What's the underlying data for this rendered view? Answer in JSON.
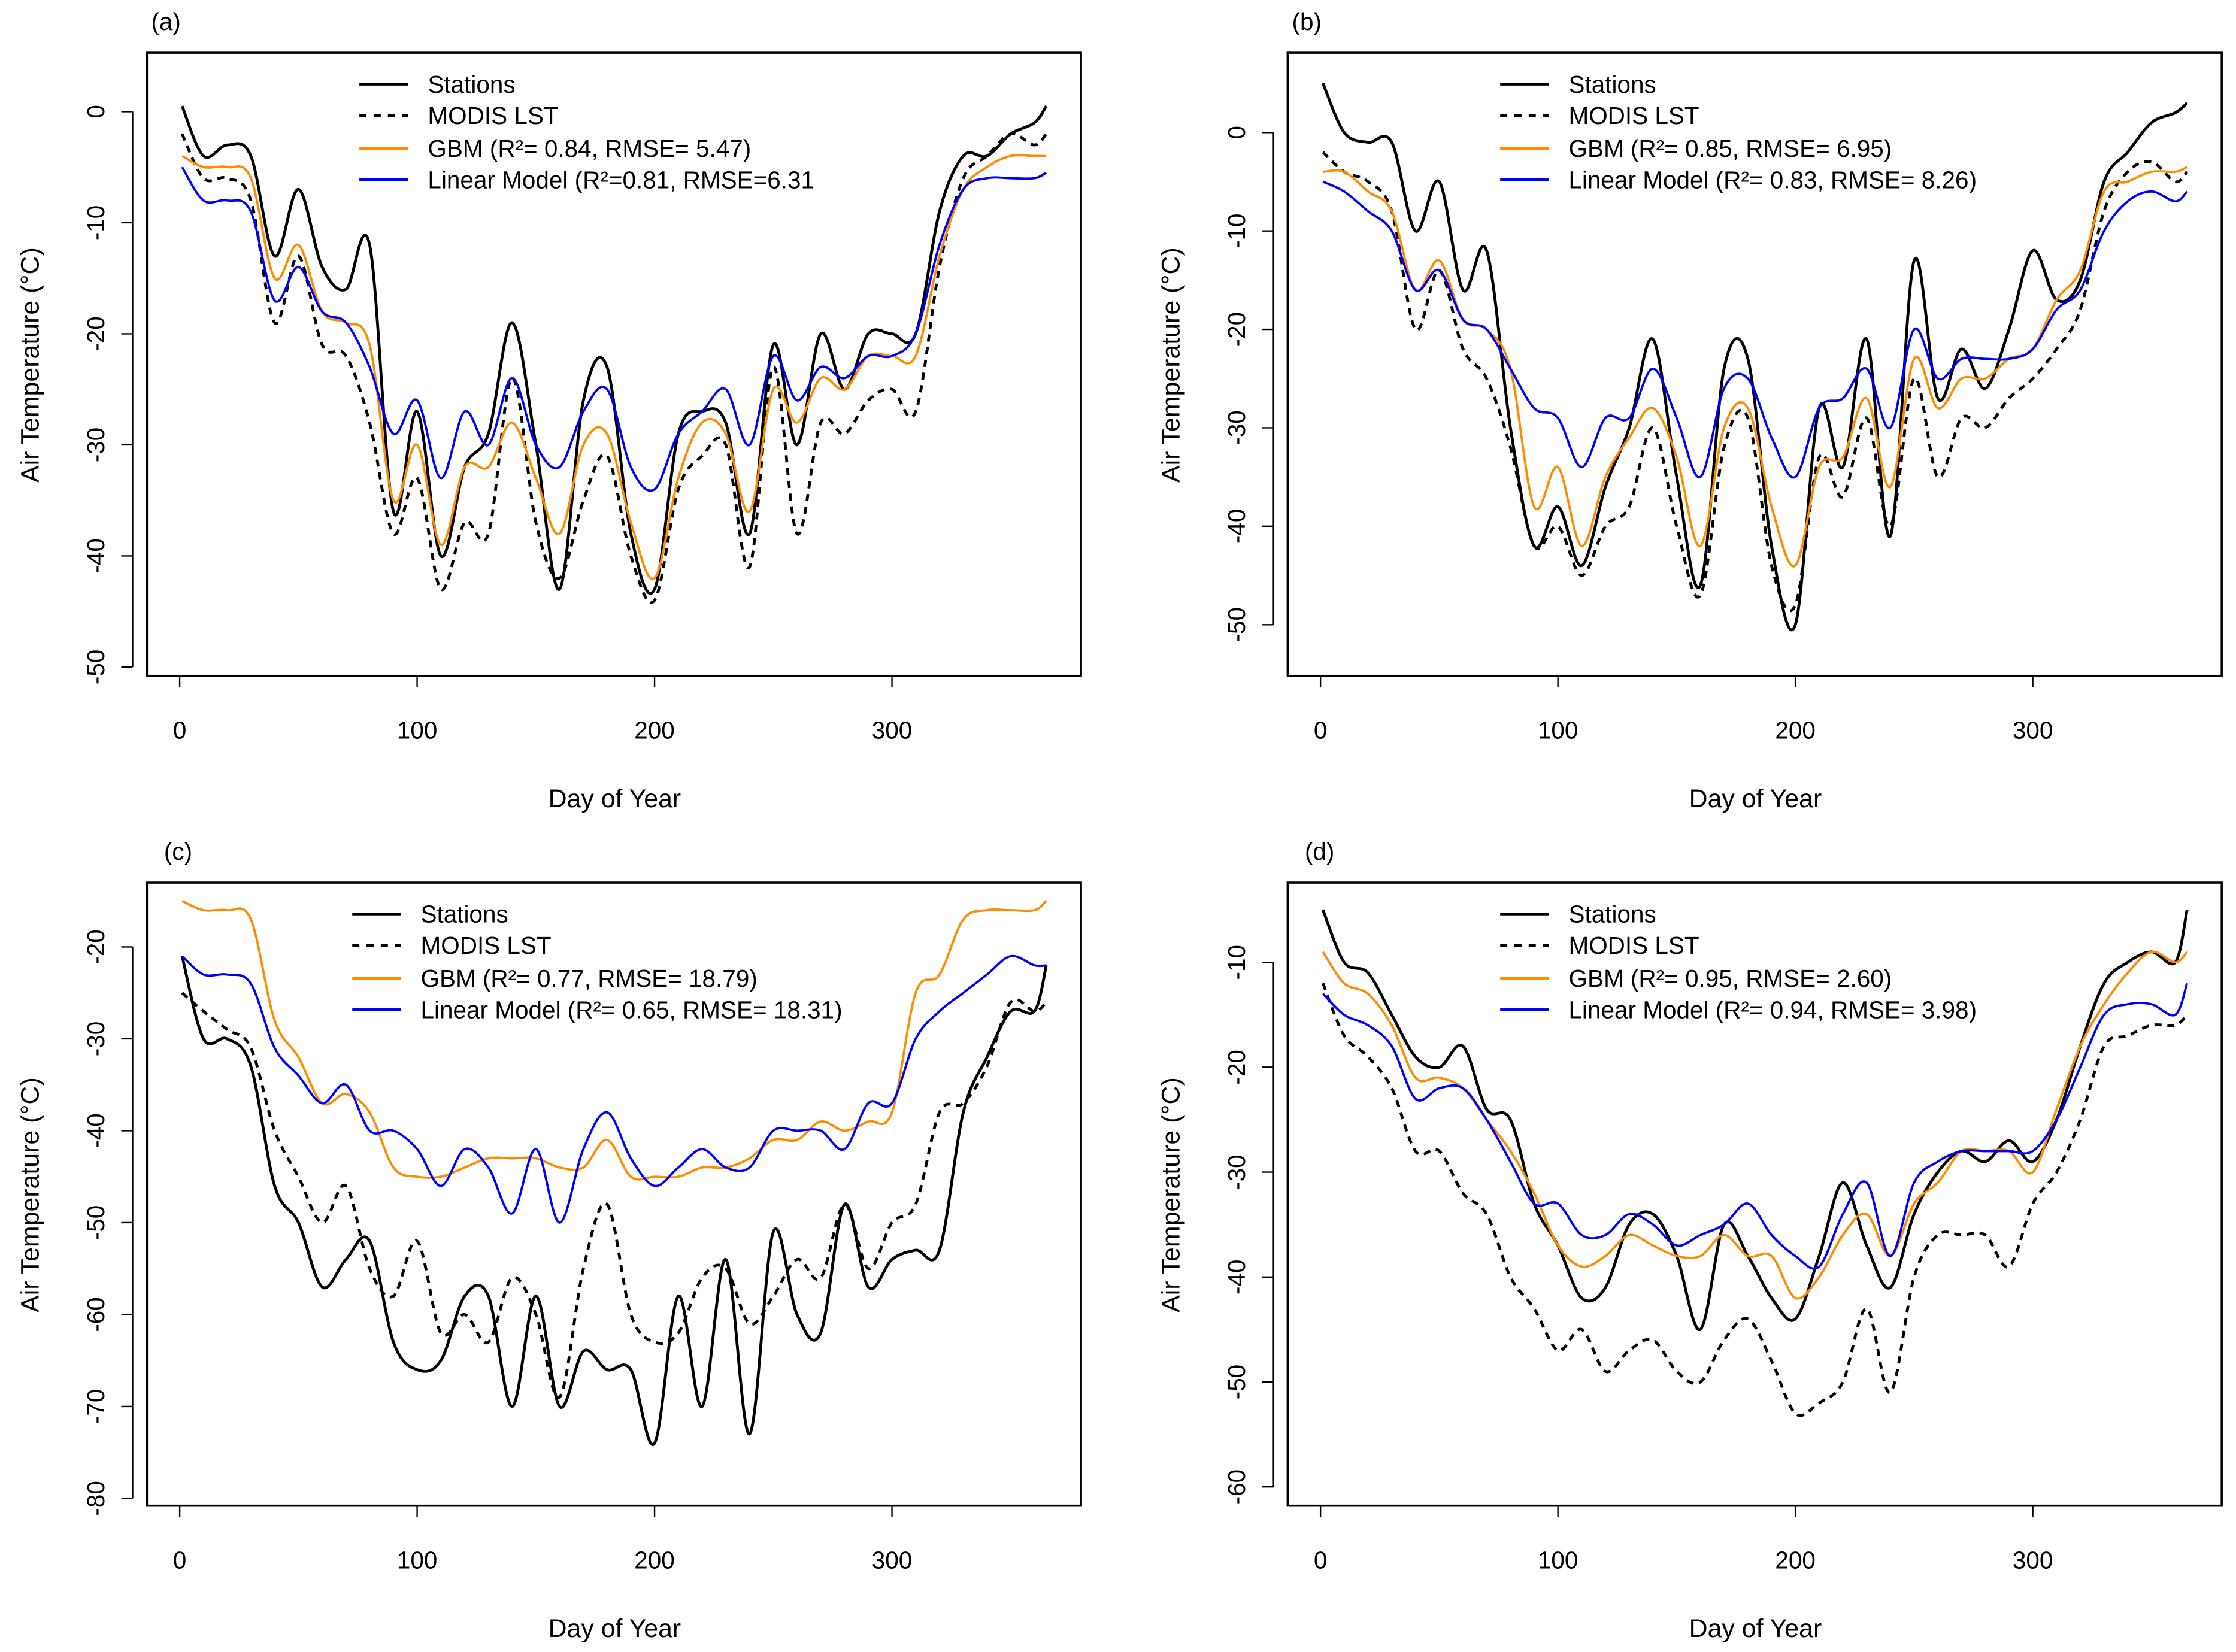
{
  "chart_data": [
    {
      "type": "line",
      "panel_label": "(a)",
      "xlabel": "Day of Year",
      "ylabel": "Air Temperature (°C)",
      "xlim": [
        0,
        365
      ],
      "ylim": [
        -50.8,
        5.3
      ],
      "xticks": [
        0,
        100,
        200,
        300
      ],
      "yticks": [
        0,
        -10,
        -20,
        -30,
        -40,
        -50
      ],
      "legend_position": "top-center",
      "x": [
        1,
        10,
        20,
        30,
        40,
        50,
        60,
        70,
        80,
        90,
        100,
        110,
        120,
        130,
        140,
        150,
        160,
        170,
        180,
        190,
        200,
        210,
        220,
        230,
        240,
        250,
        260,
        270,
        280,
        290,
        300,
        310,
        320,
        330,
        340,
        350,
        360,
        365
      ],
      "series": [
        {
          "name": "Stations",
          "color": "#000000",
          "dash": false,
          "values": [
            0.5,
            -4,
            -3,
            -4,
            -13,
            -7,
            -14,
            -16,
            -12,
            -36,
            -27,
            -40,
            -32,
            -29,
            -19,
            -30,
            -43,
            -26,
            -23,
            -38,
            -43,
            -29,
            -27,
            -28,
            -38,
            -21,
            -30,
            -20,
            -25,
            -20,
            -20,
            -20,
            -9,
            -4,
            -4,
            -2,
            -1,
            0.5
          ]
        },
        {
          "name": "MODIS LST",
          "color": "#000000",
          "dash": true,
          "values": [
            -2,
            -6,
            -6,
            -8,
            -19,
            -13,
            -21,
            -22,
            -28,
            -38,
            -33,
            -43,
            -37,
            -38,
            -24,
            -37,
            -42,
            -35,
            -31,
            -40,
            -44,
            -34,
            -31,
            -30,
            -41,
            -23,
            -38,
            -28,
            -29,
            -26,
            -25,
            -27,
            -14,
            -6,
            -4,
            -2,
            -3,
            -2
          ]
        },
        {
          "name": "GBM (R²= 0.84, RMSE= 5.47)",
          "color": "#ff8c00",
          "dash": false,
          "values": [
            -4,
            -5,
            -5,
            -6,
            -15,
            -12,
            -18,
            -19,
            -21,
            -35,
            -30,
            -39,
            -32,
            -32,
            -28,
            -33,
            -38,
            -30,
            -29,
            -37,
            -42,
            -33,
            -28,
            -29,
            -36,
            -25,
            -28,
            -24,
            -25,
            -22,
            -22,
            -22,
            -13,
            -7,
            -5,
            -4,
            -4,
            -4
          ]
        },
        {
          "name": "Linear Model (R²=0.81, RMSE=6.31",
          "color": "#0000ff",
          "dash": false,
          "values": [
            -5,
            -8,
            -8,
            -9,
            -17,
            -14,
            -18,
            -19,
            -23,
            -29,
            -26,
            -33,
            -27,
            -30,
            -24,
            -30,
            -32,
            -27,
            -25,
            -32,
            -34,
            -29,
            -27,
            -25,
            -30,
            -22,
            -26,
            -23,
            -24,
            -22,
            -22,
            -20,
            -12,
            -7,
            -6,
            -6,
            -6,
            -5.5
          ]
        }
      ]
    },
    {
      "type": "line",
      "panel_label": "(b)",
      "xlabel": "Day of Year",
      "ylabel": "Air Temperature (°C)",
      "xlim": [
        0,
        365
      ],
      "ylim": [
        -55.2,
        8.1
      ],
      "xticks": [
        0,
        100,
        200,
        300
      ],
      "yticks": [
        0,
        -10,
        -20,
        -30,
        -40,
        -50
      ],
      "legend_position": "top-center",
      "x": [
        1,
        10,
        20,
        30,
        40,
        50,
        60,
        70,
        80,
        90,
        100,
        110,
        120,
        130,
        140,
        150,
        160,
        170,
        180,
        190,
        200,
        210,
        220,
        230,
        240,
        250,
        260,
        270,
        280,
        290,
        300,
        310,
        320,
        330,
        340,
        350,
        360,
        365
      ],
      "series": [
        {
          "name": "Stations",
          "color": "#000000",
          "dash": false,
          "values": [
            5,
            0,
            -1,
            -1,
            -10,
            -5,
            -16,
            -12,
            -30,
            -42,
            -38,
            -44,
            -36,
            -30,
            -21,
            -35,
            -46,
            -24,
            -23,
            -42,
            -50,
            -28,
            -34,
            -21,
            -41,
            -13,
            -27,
            -22,
            -26,
            -20,
            -12,
            -17,
            -15,
            -5,
            -2,
            1,
            2,
            3
          ]
        },
        {
          "name": "MODIS LST",
          "color": "#000000",
          "dash": true,
          "values": [
            -2,
            -4,
            -5,
            -8,
            -20,
            -14,
            -22,
            -25,
            -32,
            -42,
            -40,
            -45,
            -40,
            -38,
            -30,
            -40,
            -47,
            -32,
            -29,
            -44,
            -48,
            -33,
            -37,
            -29,
            -40,
            -25,
            -35,
            -29,
            -30,
            -27,
            -25,
            -22,
            -18,
            -8,
            -4,
            -3,
            -5,
            -4
          ]
        },
        {
          "name": "GBM (R²= 0.85, RMSE= 6.95)",
          "color": "#ff8c00",
          "dash": false,
          "values": [
            -4,
            -4,
            -6,
            -8,
            -16,
            -13,
            -19,
            -20,
            -24,
            -38,
            -34,
            -42,
            -35,
            -31,
            -28,
            -33,
            -42,
            -30,
            -28,
            -38,
            -44,
            -34,
            -33,
            -27,
            -36,
            -23,
            -28,
            -25,
            -25,
            -23,
            -22,
            -17,
            -14,
            -6,
            -5,
            -4,
            -4,
            -3.5
          ]
        },
        {
          "name": "Linear Model (R²= 0.83, RMSE= 8.26)",
          "color": "#0000ff",
          "dash": false,
          "values": [
            -5,
            -6,
            -8,
            -10,
            -16,
            -14,
            -19,
            -20,
            -24,
            -28,
            -29,
            -34,
            -29,
            -29,
            -24,
            -29,
            -35,
            -26,
            -25,
            -31,
            -35,
            -28,
            -27,
            -24,
            -30,
            -20,
            -25,
            -23,
            -23,
            -23,
            -22,
            -18,
            -16,
            -10,
            -7,
            -6,
            -7,
            -6
          ]
        }
      ]
    },
    {
      "type": "line",
      "panel_label": "(c)",
      "xlabel": "Day of Year",
      "ylabel": "Air Temperature (°C)",
      "xlim": [
        0,
        365
      ],
      "ylim": [
        -80.8,
        -13
      ],
      "xticks": [
        0,
        100,
        200,
        300
      ],
      "yticks": [
        -20,
        -30,
        -40,
        -50,
        -60,
        -70,
        -80
      ],
      "legend_position": "top-center",
      "x": [
        1,
        10,
        20,
        30,
        40,
        50,
        60,
        70,
        80,
        90,
        100,
        110,
        120,
        130,
        140,
        150,
        160,
        170,
        180,
        190,
        200,
        210,
        220,
        230,
        240,
        250,
        260,
        270,
        280,
        290,
        300,
        310,
        320,
        330,
        340,
        350,
        360,
        365
      ],
      "series": [
        {
          "name": "Stations",
          "color": "#000000",
          "dash": false,
          "values": [
            -21,
            -30,
            -30,
            -33,
            -46,
            -50,
            -57,
            -54,
            -52,
            -63,
            -66,
            -65,
            -58,
            -58,
            -70,
            -58,
            -70,
            -64,
            -66,
            -66,
            -74,
            -58,
            -70,
            -54,
            -73,
            -51,
            -60,
            -62,
            -48,
            -57,
            -54,
            -53,
            -53,
            -38,
            -32,
            -27,
            -27,
            -22
          ]
        },
        {
          "name": "MODIS LST",
          "color": "#000000",
          "dash": true,
          "values": [
            -25,
            -27,
            -29,
            -31,
            -40,
            -45,
            -50,
            -46,
            -55,
            -58,
            -52,
            -62,
            -60,
            -63,
            -56,
            -60,
            -69,
            -55,
            -48,
            -60,
            -63,
            -62,
            -56,
            -55,
            -61,
            -58,
            -54,
            -56,
            -48,
            -55,
            -50,
            -48,
            -38,
            -37,
            -33,
            -26,
            -27,
            -26
          ]
        },
        {
          "name": "GBM (R²= 0.77, RMSE= 18.79)",
          "color": "#ff8c00",
          "dash": false,
          "values": [
            -15,
            -16,
            -16,
            -17,
            -28,
            -32,
            -37,
            -36,
            -38,
            -44,
            -45,
            -45,
            -44,
            -43,
            -43,
            -43,
            -44,
            -44,
            -41,
            -45,
            -45,
            -45,
            -44,
            -44,
            -43,
            -41,
            -41,
            -39,
            -40,
            -39,
            -38,
            -25,
            -23,
            -17,
            -16,
            -16,
            -16,
            -15
          ]
        },
        {
          "name": "Linear Model (R²= 0.65, RMSE= 18.31)",
          "color": "#0000ff",
          "dash": false,
          "values": [
            -21,
            -23,
            -23,
            -24,
            -31,
            -34,
            -37,
            -35,
            -40,
            -40,
            -42,
            -46,
            -42,
            -44,
            -49,
            -42,
            -50,
            -42,
            -38,
            -43,
            -46,
            -44,
            -42,
            -44,
            -44,
            -40,
            -40,
            -40,
            -42,
            -37,
            -37,
            -30,
            -27,
            -25,
            -23,
            -21,
            -22,
            -22
          ]
        }
      ]
    },
    {
      "type": "line",
      "panel_label": "(d)",
      "xlabel": "Day of Year",
      "ylabel": "Air Temperature (°C)",
      "xlim": [
        0,
        365
      ],
      "ylim": [
        -61.8,
        -2.4
      ],
      "xticks": [
        0,
        100,
        200,
        300
      ],
      "yticks": [
        -10,
        -20,
        -30,
        -40,
        -50,
        -60
      ],
      "legend_position": "top-center",
      "x": [
        1,
        10,
        20,
        30,
        40,
        50,
        60,
        70,
        80,
        90,
        100,
        110,
        120,
        130,
        140,
        150,
        160,
        170,
        180,
        190,
        200,
        210,
        220,
        230,
        240,
        250,
        260,
        270,
        280,
        290,
        300,
        310,
        320,
        330,
        340,
        350,
        360,
        365
      ],
      "series": [
        {
          "name": "Stations",
          "color": "#000000",
          "dash": false,
          "values": [
            -5,
            -10,
            -11,
            -15,
            -19,
            -20,
            -18,
            -24,
            -25,
            -33,
            -37,
            -42,
            -41,
            -35,
            -34,
            -38,
            -45,
            -35,
            -38,
            -42,
            -44,
            -38,
            -31,
            -37,
            -41,
            -34,
            -30,
            -28,
            -29,
            -27,
            -29,
            -25,
            -18,
            -12,
            -10,
            -9,
            -10,
            -5
          ]
        },
        {
          "name": "MODIS LST",
          "color": "#000000",
          "dash": true,
          "values": [
            -12,
            -17,
            -19,
            -22,
            -28,
            -28,
            -32,
            -34,
            -40,
            -43,
            -47,
            -45,
            -49,
            -47,
            -46,
            -49,
            -50,
            -46,
            -44,
            -48,
            -53,
            -52,
            -50,
            -43,
            -51,
            -40,
            -36,
            -36,
            -36,
            -39,
            -33,
            -30,
            -25,
            -18,
            -17,
            -16,
            -16,
            -15
          ]
        },
        {
          "name": "GBM (R²= 0.95, RMSE= 2.60)",
          "color": "#ff8c00",
          "dash": false,
          "values": [
            -9,
            -12,
            -13,
            -16,
            -21,
            -21,
            -22,
            -25,
            -28,
            -32,
            -37,
            -39,
            -38,
            -36,
            -37,
            -38,
            -38,
            -36,
            -38,
            -38,
            -42,
            -40,
            -36,
            -34,
            -38,
            -33,
            -31,
            -28,
            -28,
            -28,
            -30,
            -24,
            -18,
            -14,
            -11,
            -9,
            -10,
            -9
          ]
        },
        {
          "name": "Linear Model (R²= 0.94, RMSE= 3.98)",
          "color": "#0000ff",
          "dash": false,
          "values": [
            -13,
            -15,
            -16,
            -18,
            -23,
            -22,
            -22,
            -25,
            -29,
            -33,
            -33,
            -36,
            -36,
            -34,
            -35,
            -37,
            -36,
            -35,
            -33,
            -36,
            -38,
            -39,
            -34,
            -31,
            -38,
            -31,
            -29,
            -28,
            -28,
            -28,
            -28,
            -25,
            -20,
            -15,
            -14,
            -14,
            -15,
            -12
          ]
        }
      ]
    }
  ]
}
